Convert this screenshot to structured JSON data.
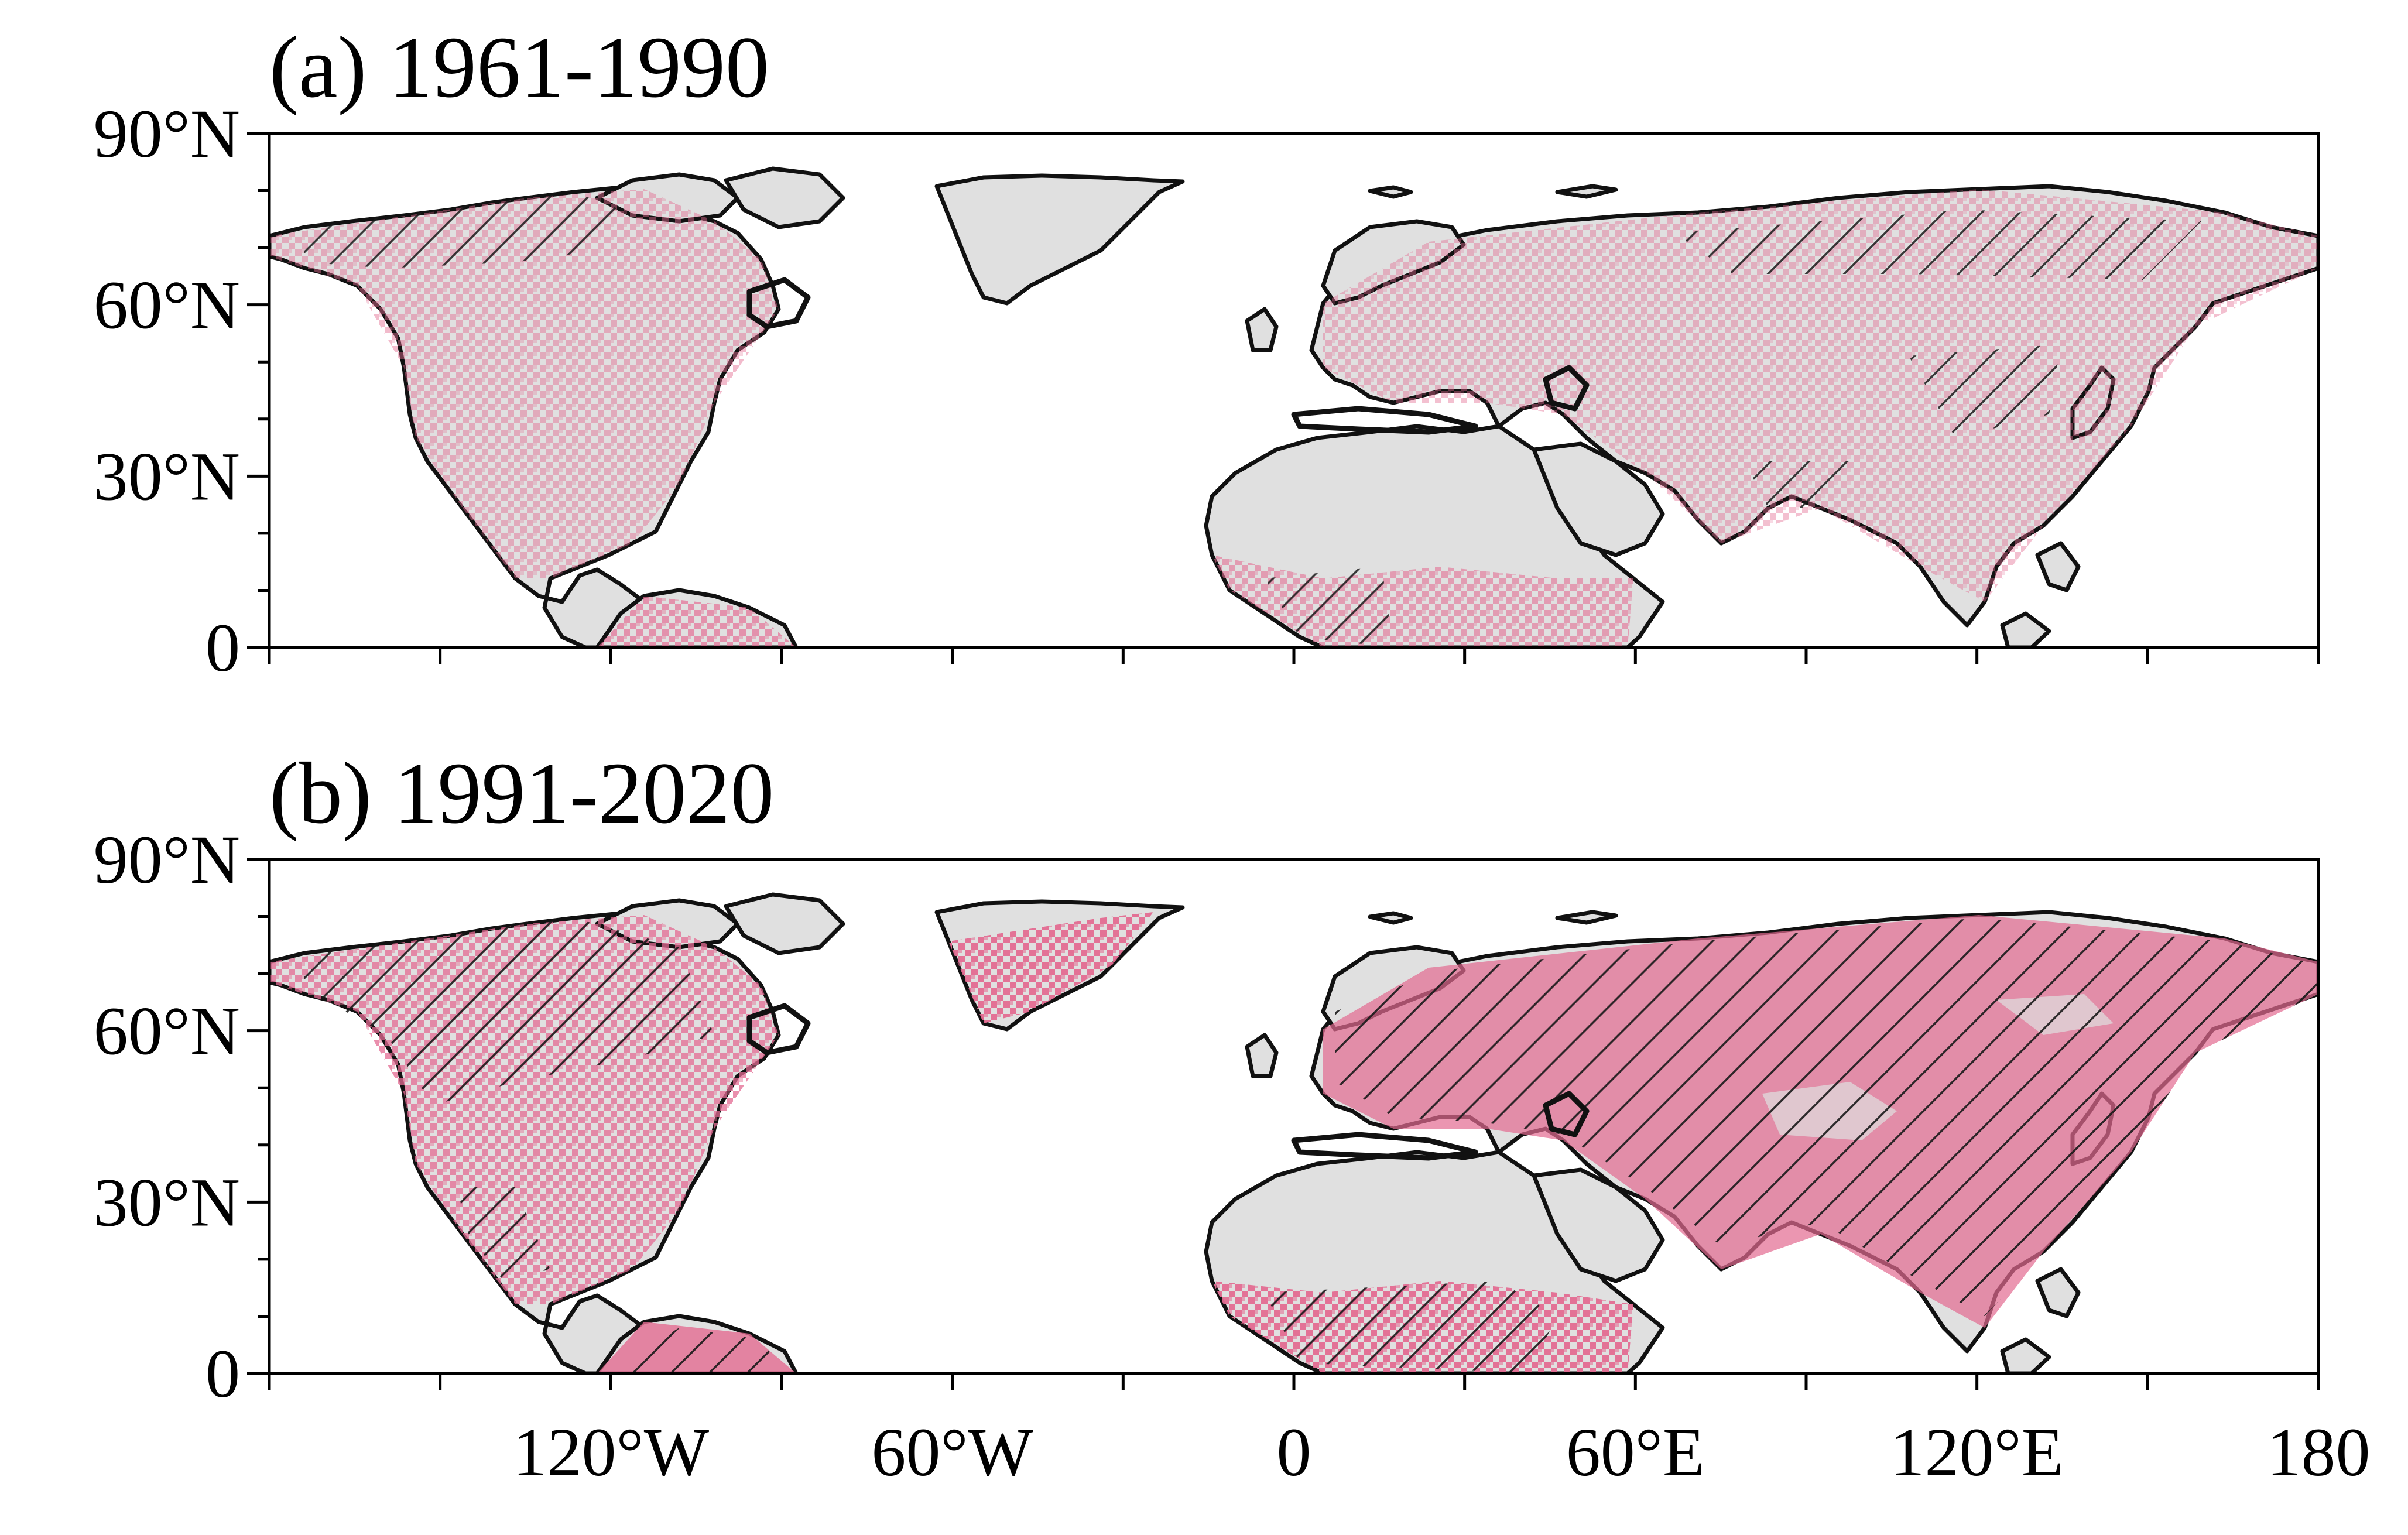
{
  "panels": [
    {
      "title": "(a) 1961-1990"
    },
    {
      "title": "(b) 1991-2020"
    }
  ],
  "y_ticks": [
    "90°N",
    "60°N",
    "30°N",
    "0"
  ],
  "x_ticks": [
    "120°W",
    "60°W",
    "0",
    "60°E",
    "120°E",
    "180"
  ],
  "colors": {
    "land_background": "#e0e0e0",
    "significant_pixels": "#e36c92",
    "hatching": "#1a1a1a",
    "coastline": "#111111"
  }
}
